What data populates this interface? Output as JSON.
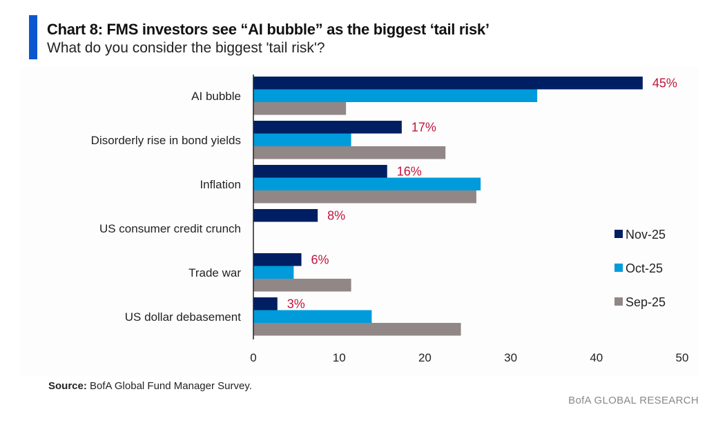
{
  "header": {
    "title": "Chart 8: FMS investors see “AI bubble” as the biggest ‘tail risk’",
    "subtitle": "What do you consider the biggest 'tail risk'?"
  },
  "footer": {
    "source_label": "Source:",
    "source_text": " BofA Global Fund Manager Survey.",
    "brand": "BofA GLOBAL RESEARCH"
  },
  "colors": {
    "accent": "#0b57d0",
    "nov": "#001f63",
    "oct": "#009bdb",
    "sep": "#918786",
    "data_label": "#c0143c"
  },
  "chart_data": {
    "type": "bar",
    "orientation": "horizontal",
    "title": "Chart 8: FMS investors see “AI bubble” as the biggest ‘tail risk’",
    "subtitle": "What do you consider the biggest 'tail risk'?",
    "xlabel": "",
    "ylabel": "",
    "categories": [
      "AI bubble",
      "Disorderly rise in bond yields",
      "Inflation",
      "US consumer credit crunch",
      "Trade war",
      "US dollar debasement"
    ],
    "series": [
      {
        "name": "Nov-25",
        "color": "#001f63",
        "values": [
          45.4,
          17.3,
          15.6,
          7.5,
          5.6,
          2.8
        ],
        "labels": [
          "45%",
          "17%",
          "16%",
          "8%",
          "6%",
          "3%"
        ]
      },
      {
        "name": "Oct-25",
        "color": "#009bdb",
        "values": [
          33.1,
          11.4,
          26.5,
          null,
          4.7,
          13.8
        ]
      },
      {
        "name": "Sep-25",
        "color": "#918786",
        "values": [
          10.8,
          22.4,
          26.0,
          null,
          11.4,
          24.2
        ]
      }
    ],
    "xlim": [
      0,
      50
    ],
    "xticks": [
      0,
      10,
      20,
      30,
      40,
      50
    ],
    "grid": false,
    "legend_position": "right"
  }
}
